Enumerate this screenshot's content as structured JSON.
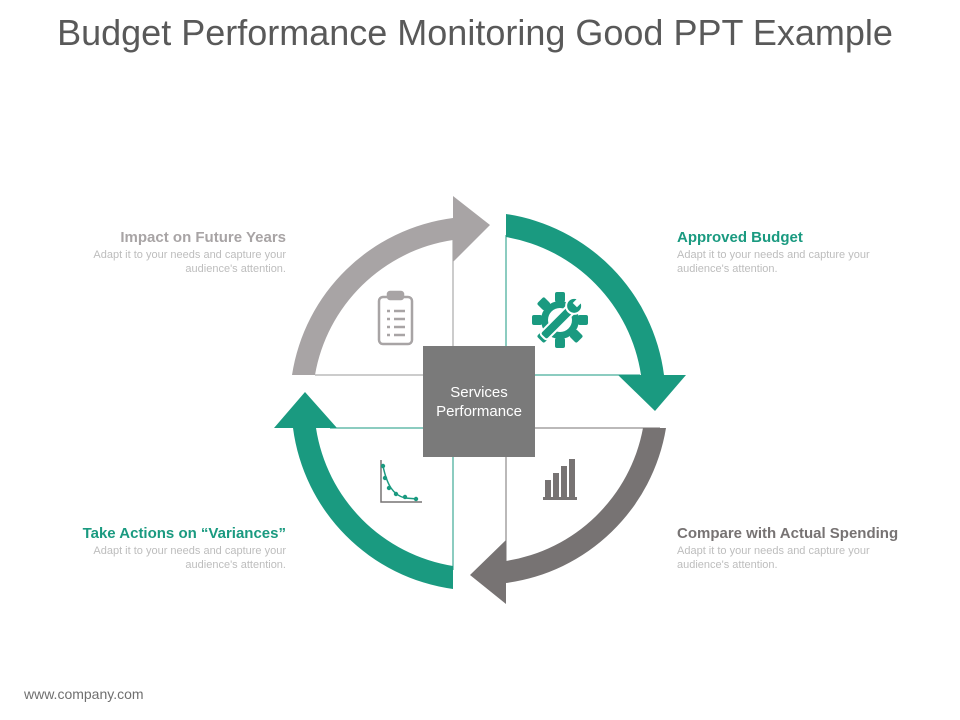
{
  "title": "Budget Performance Monitoring Good PPT Example",
  "center": {
    "line1": "Services",
    "line2": "Performance"
  },
  "items": [
    {
      "heading": "Approved Budget",
      "text": "Adapt it to your needs and capture your audience's attention.",
      "color": "#1a9a80",
      "icon": "gear-wrench-icon"
    },
    {
      "heading": "Compare with Actual Spending",
      "text": "Adapt it to your needs and capture your audience's attention.",
      "color": "#777373",
      "icon": "bar-chart-icon"
    },
    {
      "heading": "Take Actions on “Variances”",
      "text": "Adapt it to your needs and capture your audience's attention.",
      "color": "#1a9a80",
      "icon": "decay-curve-icon"
    },
    {
      "heading": "Impact on Future Years",
      "text": "Adapt it to your needs and capture your audience's attention.",
      "color": "#a8a4a5",
      "icon": "clipboard-icon"
    }
  ],
  "footer": "www.company.com"
}
